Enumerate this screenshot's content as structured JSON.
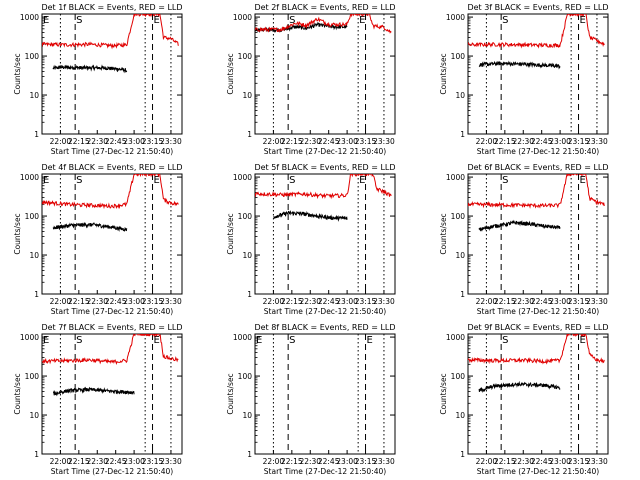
{
  "figure": {
    "panel_colors": {
      "events": "#000000",
      "lld": "#e00000",
      "axes": "#000000",
      "background": "#ffffff"
    }
  },
  "chart_data": [
    {
      "type": "line",
      "title": "Det 1f BLACK = Events, RED = LLD",
      "xlabel": "Start Time (27-Dec-12 21:50:40)",
      "ylabel": "Counts/sec",
      "x_ticks": [
        "22:00",
        "22:15",
        "22:30",
        "22:45",
        "23:00",
        "23:15",
        "23:30"
      ],
      "y_ticks": [
        "1",
        "10",
        "100",
        "1000"
      ],
      "yscale": "log",
      "ylim": [
        1,
        1200
      ],
      "xlim_minutes": [
        -5,
        33
      ],
      "markers": [
        {
          "label": "E",
          "x": -5,
          "style": "dotted"
        },
        {
          "label": "",
          "x": 0,
          "style": "dotted"
        },
        {
          "label": "S",
          "x": 4,
          "style": "dashed"
        },
        {
          "label": "",
          "x": 23,
          "style": "dotted"
        },
        {
          "label": "E",
          "x": 25,
          "style": "dashed"
        },
        {
          "label": "",
          "x": 30,
          "style": "dotted"
        }
      ],
      "series": [
        {
          "values_events": [
            [
              -2,
              48
            ],
            [
              0,
              52
            ],
            [
              6,
              50
            ],
            [
              12,
              50
            ],
            [
              17,
              45
            ],
            [
              18,
              42
            ]
          ]
        },
        {
          "values_lld": [
            [
              -5,
              200
            ],
            [
              2,
              195
            ],
            [
              8,
              200
            ],
            [
              14,
              185
            ],
            [
              18,
              195
            ],
            [
              20,
              1200
            ],
            [
              27,
              1200
            ],
            [
              28,
              300
            ],
            [
              30,
              280
            ],
            [
              32,
              200
            ]
          ]
        }
      ]
    },
    {
      "type": "line",
      "title": "Det 2f BLACK = Events, RED = LLD",
      "xlabel": "Start Time (27-Dec-12 21:50:40)",
      "ylabel": "Counts/sec",
      "x_ticks": [
        "22:00",
        "22:15",
        "22:30",
        "22:45",
        "23:00",
        "23:15",
        "23:30"
      ],
      "y_ticks": [
        "1",
        "10",
        "100",
        "1000"
      ],
      "yscale": "log",
      "ylim": [
        1,
        1200
      ],
      "xlim_minutes": [
        -5,
        33
      ],
      "markers": [
        {
          "label": "",
          "x": -5,
          "style": "dotted"
        },
        {
          "label": "",
          "x": 0,
          "style": "dotted"
        },
        {
          "label": "S",
          "x": 4,
          "style": "dashed"
        },
        {
          "label": "E",
          "x": 23,
          "style": "dotted"
        },
        {
          "label": "",
          "x": 25,
          "style": "dashed"
        },
        {
          "label": "",
          "x": 30,
          "style": "dotted"
        }
      ],
      "series": [
        {
          "values_events": [
            [
              -5,
              480
            ],
            [
              2,
              470
            ],
            [
              6,
              560
            ],
            [
              9,
              520
            ],
            [
              12,
              640
            ],
            [
              16,
              560
            ],
            [
              20,
              560
            ]
          ]
        },
        {
          "values_lld": [
            [
              -5,
              480
            ],
            [
              2,
              480
            ],
            [
              6,
              700
            ],
            [
              9,
              620
            ],
            [
              12,
              900
            ],
            [
              15,
              650
            ],
            [
              20,
              650
            ],
            [
              21,
              1200
            ],
            [
              26,
              1200
            ],
            [
              27,
              600
            ],
            [
              30,
              550
            ],
            [
              32,
              400
            ]
          ]
        }
      ]
    },
    {
      "type": "line",
      "title": "Det 3f BLACK = Events, RED = LLD",
      "xlabel": "Start Time (27-Dec-12 21:50:40)",
      "ylabel": "Counts/sec",
      "x_ticks": [
        "22:00",
        "22:15",
        "22:30",
        "22:45",
        "23:00",
        "23:15",
        "23:30"
      ],
      "y_ticks": [
        "1",
        "10",
        "100",
        "1000"
      ],
      "yscale": "log",
      "ylim": [
        1,
        1200
      ],
      "xlim_minutes": [
        -5,
        33
      ],
      "markers": [
        {
          "label": "",
          "x": -5,
          "style": "dotted"
        },
        {
          "label": "",
          "x": 0,
          "style": "dotted"
        },
        {
          "label": "S",
          "x": 4,
          "style": "dashed"
        },
        {
          "label": "",
          "x": 23,
          "style": "dotted"
        },
        {
          "label": "E",
          "x": 25,
          "style": "dashed"
        },
        {
          "label": "",
          "x": 30,
          "style": "dotted"
        }
      ],
      "series": [
        {
          "values_events": [
            [
              -2,
              60
            ],
            [
              4,
              65
            ],
            [
              10,
              62
            ],
            [
              16,
              58
            ],
            [
              20,
              55
            ]
          ]
        },
        {
          "values_lld": [
            [
              -5,
              195
            ],
            [
              3,
              200
            ],
            [
              10,
              195
            ],
            [
              16,
              190
            ],
            [
              20,
              190
            ],
            [
              22,
              1200
            ],
            [
              27,
              1200
            ],
            [
              28,
              300
            ],
            [
              30,
              250
            ],
            [
              32,
              200
            ]
          ]
        }
      ]
    },
    {
      "type": "line",
      "title": "Det 4f BLACK = Events, RED = LLD",
      "xlabel": "Start Time (27-Dec-12 21:50:40)",
      "ylabel": "Counts/sec",
      "x_ticks": [
        "22:00",
        "22:15",
        "22:30",
        "22:45",
        "23:00",
        "23:15",
        "23:30"
      ],
      "y_ticks": [
        "1",
        "10",
        "100",
        "1000"
      ],
      "yscale": "log",
      "ylim": [
        1,
        1200
      ],
      "xlim_minutes": [
        -5,
        33
      ],
      "markers": [
        {
          "label": "E",
          "x": -5,
          "style": "dotted"
        },
        {
          "label": "",
          "x": 0,
          "style": "dotted"
        },
        {
          "label": "S",
          "x": 4,
          "style": "dashed"
        },
        {
          "label": "",
          "x": 23,
          "style": "dotted"
        },
        {
          "label": "E",
          "x": 25,
          "style": "dashed"
        },
        {
          "label": "",
          "x": 30,
          "style": "dotted"
        }
      ],
      "series": [
        {
          "values_events": [
            [
              -2,
              50
            ],
            [
              3,
              58
            ],
            [
              9,
              60
            ],
            [
              14,
              52
            ],
            [
              18,
              45
            ]
          ]
        },
        {
          "values_lld": [
            [
              -5,
              230
            ],
            [
              2,
              200
            ],
            [
              8,
              190
            ],
            [
              14,
              180
            ],
            [
              18,
              200
            ],
            [
              20,
              1200
            ],
            [
              27,
              1200
            ],
            [
              28,
              260
            ],
            [
              30,
              220
            ],
            [
              32,
              200
            ]
          ]
        }
      ]
    },
    {
      "type": "line",
      "title": "Det 5f BLACK = Events, RED = LLD",
      "xlabel": "Start Time (27-Dec-12 21:50:40)",
      "ylabel": "Counts/sec",
      "x_ticks": [
        "22:00",
        "22:15",
        "22:30",
        "22:45",
        "23:00",
        "23:15",
        "23:30"
      ],
      "y_ticks": [
        "1",
        "10",
        "100",
        "1000"
      ],
      "yscale": "log",
      "ylim": [
        1,
        1200
      ],
      "xlim_minutes": [
        -5,
        33
      ],
      "markers": [
        {
          "label": "",
          "x": -5,
          "style": "dotted"
        },
        {
          "label": "",
          "x": 0,
          "style": "dotted"
        },
        {
          "label": "S",
          "x": 4,
          "style": "dashed"
        },
        {
          "label": "E",
          "x": 23,
          "style": "dotted"
        },
        {
          "label": "",
          "x": 25,
          "style": "dashed"
        },
        {
          "label": "",
          "x": 30,
          "style": "dotted"
        }
      ],
      "series": [
        {
          "values_events": [
            [
              0,
              95
            ],
            [
              4,
              120
            ],
            [
              8,
              115
            ],
            [
              12,
              100
            ],
            [
              16,
              90
            ],
            [
              20,
              88
            ]
          ]
        },
        {
          "values_lld": [
            [
              -5,
              380
            ],
            [
              3,
              350
            ],
            [
              8,
              370
            ],
            [
              14,
              330
            ],
            [
              20,
              340
            ],
            [
              21,
              1200
            ],
            [
              27,
              1200
            ],
            [
              28,
              500
            ],
            [
              30,
              420
            ],
            [
              32,
              330
            ]
          ]
        }
      ]
    },
    {
      "type": "line",
      "title": "Det 6f BLACK = Events, RED = LLD",
      "xlabel": "Start Time (27-Dec-12 21:50:40)",
      "ylabel": "Counts/sec",
      "x_ticks": [
        "22:00",
        "22:15",
        "22:30",
        "22:45",
        "23:00",
        "23:15",
        "23:30"
      ],
      "y_ticks": [
        "1",
        "10",
        "100",
        "1000"
      ],
      "yscale": "log",
      "ylim": [
        1,
        1200
      ],
      "xlim_minutes": [
        -5,
        33
      ],
      "markers": [
        {
          "label": "",
          "x": -5,
          "style": "dotted"
        },
        {
          "label": "",
          "x": 0,
          "style": "dotted"
        },
        {
          "label": "S",
          "x": 4,
          "style": "dashed"
        },
        {
          "label": "",
          "x": 23,
          "style": "dotted"
        },
        {
          "label": "E",
          "x": 25,
          "style": "dashed"
        },
        {
          "label": "",
          "x": 30,
          "style": "dotted"
        }
      ],
      "series": [
        {
          "values_events": [
            [
              -2,
              45
            ],
            [
              2,
              55
            ],
            [
              8,
              68
            ],
            [
              12,
              62
            ],
            [
              16,
              55
            ],
            [
              20,
              50
            ]
          ]
        },
        {
          "values_lld": [
            [
              -5,
              200
            ],
            [
              3,
              195
            ],
            [
              10,
              190
            ],
            [
              16,
              185
            ],
            [
              20,
              190
            ],
            [
              22,
              1200
            ],
            [
              27,
              1200
            ],
            [
              28,
              280
            ],
            [
              30,
              230
            ],
            [
              32,
              200
            ]
          ]
        }
      ]
    },
    {
      "type": "line",
      "title": "Det 7f BLACK = Events, RED = LLD",
      "xlabel": "Start Time (27-Dec-12 21:50:40)",
      "ylabel": "Counts/sec",
      "x_ticks": [
        "22:00",
        "22:15",
        "22:30",
        "22:45",
        "23:00",
        "23:15",
        "23:30"
      ],
      "y_ticks": [
        "1",
        "10",
        "100",
        "1000"
      ],
      "yscale": "log",
      "ylim": [
        1,
        1200
      ],
      "xlim_minutes": [
        -5,
        33
      ],
      "markers": [
        {
          "label": "E",
          "x": -5,
          "style": "dotted"
        },
        {
          "label": "",
          "x": 0,
          "style": "dotted"
        },
        {
          "label": "S",
          "x": 4,
          "style": "dashed"
        },
        {
          "label": "",
          "x": 23,
          "style": "dotted"
        },
        {
          "label": "E",
          "x": 25,
          "style": "dashed"
        },
        {
          "label": "",
          "x": 30,
          "style": "dotted"
        }
      ],
      "series": [
        {
          "values_events": [
            [
              -2,
              35
            ],
            [
              2,
              42
            ],
            [
              8,
              45
            ],
            [
              12,
              42
            ],
            [
              16,
              40
            ],
            [
              20,
              38
            ]
          ]
        },
        {
          "values_lld": [
            [
              -5,
              240
            ],
            [
              3,
              250
            ],
            [
              8,
              260
            ],
            [
              14,
              230
            ],
            [
              18,
              250
            ],
            [
              20,
              1200
            ],
            [
              27,
              1200
            ],
            [
              28,
              320
            ],
            [
              30,
              280
            ],
            [
              32,
              260
            ]
          ]
        }
      ]
    },
    {
      "type": "line",
      "title": "Det 8f BLACK = Events, RED = LLD",
      "xlabel": "Start Time (27-Dec-12 21:50:40)",
      "ylabel": "Counts/sec",
      "x_ticks": [
        "22:00",
        "22:15",
        "22:30",
        "22:45",
        "23:00",
        "23:15",
        "23:30"
      ],
      "y_ticks": [
        "1",
        "10",
        "100",
        "1000"
      ],
      "yscale": "log",
      "ylim": [
        1,
        1200
      ],
      "xlim_minutes": [
        -5,
        33
      ],
      "markers": [
        {
          "label": "E",
          "x": -5,
          "style": "dotted"
        },
        {
          "label": "",
          "x": 0,
          "style": "dotted"
        },
        {
          "label": "S",
          "x": 4,
          "style": "dashed"
        },
        {
          "label": "",
          "x": 23,
          "style": "dotted"
        },
        {
          "label": "E",
          "x": 25,
          "style": "dashed"
        },
        {
          "label": "",
          "x": 30,
          "style": "dotted"
        }
      ],
      "series": []
    },
    {
      "type": "line",
      "title": "Det 9f BLACK = Events, RED = LLD",
      "xlabel": "Start Time (27-Dec-12 21:50:40)",
      "ylabel": "Counts/sec",
      "x_ticks": [
        "22:00",
        "22:15",
        "22:30",
        "22:45",
        "23:00",
        "23:15",
        "23:30"
      ],
      "y_ticks": [
        "1",
        "10",
        "100",
        "1000"
      ],
      "yscale": "log",
      "ylim": [
        1,
        1200
      ],
      "xlim_minutes": [
        -5,
        33
      ],
      "markers": [
        {
          "label": "",
          "x": -5,
          "style": "dotted"
        },
        {
          "label": "",
          "x": 0,
          "style": "dotted"
        },
        {
          "label": "S",
          "x": 4,
          "style": "dashed"
        },
        {
          "label": "",
          "x": 23,
          "style": "dotted"
        },
        {
          "label": "E",
          "x": 25,
          "style": "dashed"
        },
        {
          "label": "",
          "x": 30,
          "style": "dotted"
        }
      ],
      "series": [
        {
          "values_events": [
            [
              -2,
              42
            ],
            [
              2,
              55
            ],
            [
              8,
              62
            ],
            [
              12,
              60
            ],
            [
              16,
              58
            ],
            [
              20,
              50
            ]
          ]
        },
        {
          "values_lld": [
            [
              -5,
              260
            ],
            [
              3,
              250
            ],
            [
              10,
              255
            ],
            [
              16,
              240
            ],
            [
              20,
              250
            ],
            [
              22,
              1200
            ],
            [
              27,
              1200
            ],
            [
              28,
              350
            ],
            [
              30,
              260
            ],
            [
              32,
              240
            ]
          ]
        }
      ]
    }
  ]
}
